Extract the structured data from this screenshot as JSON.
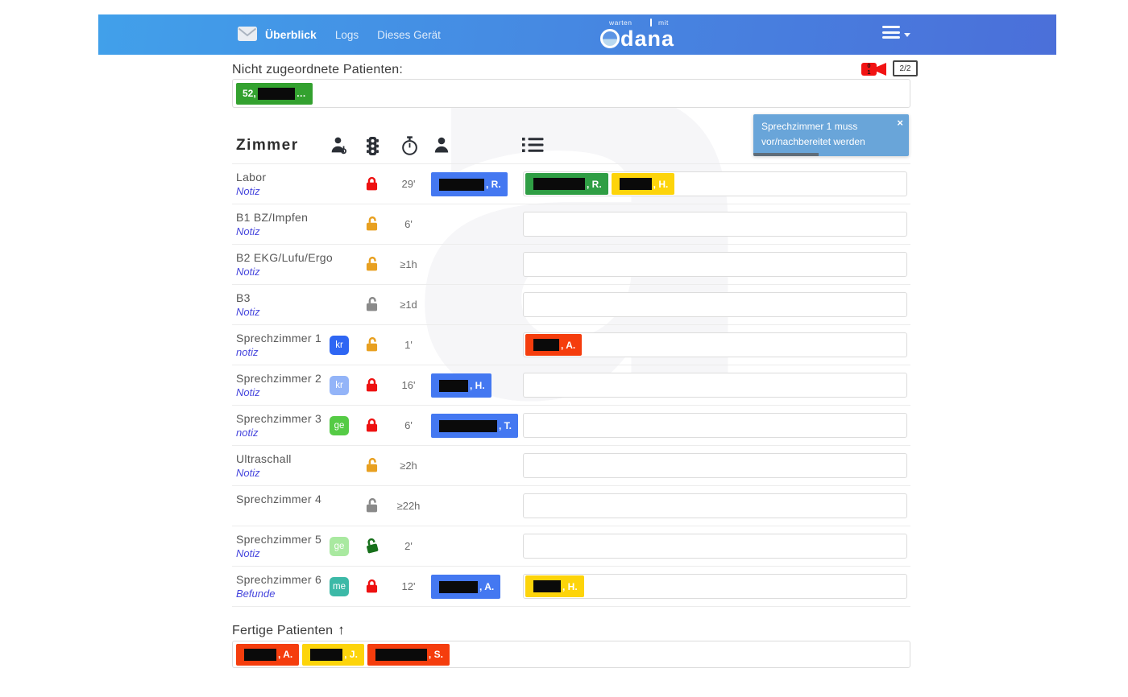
{
  "header": {
    "nav": {
      "overview": "Überblick",
      "logs": "Logs",
      "device": "Dieses Gerät"
    },
    "logo": {
      "top_left": "warten",
      "top_right": "mit",
      "main": "adana"
    }
  },
  "status_icons": {
    "camera_top": "0",
    "camera_bottom": "1",
    "monitor_label": "2/2"
  },
  "unassigned": {
    "title": "Nicht zugeordnete Patienten:",
    "patients": [
      {
        "bg": "#33a12f",
        "prefix": "52,",
        "redact": 46,
        "suffix": "…"
      }
    ]
  },
  "toast": {
    "message": "Sprechzimmer 1 muss vor/nachbereitet werden",
    "close_label": "×",
    "progress_pct": 42,
    "bg": "#69a5d9"
  },
  "table": {
    "room_header": "Zimmer",
    "header_icons": [
      "doctor-icon",
      "traffic-light-icon",
      "stopwatch-icon",
      "person-icon",
      "list-icon"
    ],
    "rows": [
      {
        "name": "Labor",
        "note": {
          "label": "Notiz"
        },
        "badge": null,
        "lock": {
          "state": "closed",
          "color": "#ee1111"
        },
        "time": "29'",
        "current": {
          "bg": "#4478f1",
          "redact": 56,
          "suffix": ", R."
        },
        "queue": [
          {
            "bg": "#2f9e44",
            "redact": 64,
            "suffix": ", R."
          },
          {
            "bg": "#fdd40a",
            "redact": 40,
            "suffix": ", H."
          }
        ]
      },
      {
        "name": "B1 BZ/Impfen",
        "note": {
          "label": "Notiz"
        },
        "badge": null,
        "lock": {
          "state": "open",
          "color": "#e8a020"
        },
        "time": "6'",
        "current": null,
        "queue": []
      },
      {
        "name": "B2 EKG/Lufu/Ergo",
        "note": {
          "label": "Notiz"
        },
        "badge": null,
        "lock": {
          "state": "open",
          "color": "#e8a020"
        },
        "time": "≥1h",
        "current": null,
        "queue": []
      },
      {
        "name": "B3",
        "note": {
          "label": "Notiz"
        },
        "badge": null,
        "lock": {
          "state": "open",
          "color": "#8a8a8a"
        },
        "time": "≥1d",
        "current": null,
        "queue": []
      },
      {
        "name": "Sprechzimmer 1",
        "note": {
          "label": "notiz"
        },
        "badge": {
          "label": "kr",
          "bg": "#2e66f3"
        },
        "lock": {
          "state": "open",
          "color": "#e8a020"
        },
        "time": "1'",
        "current": null,
        "queue": [
          {
            "bg": "#f53d0d",
            "redact": 32,
            "suffix": ", A."
          }
        ]
      },
      {
        "name": "Sprechzimmer 2",
        "note": {
          "label": "Notiz"
        },
        "badge": {
          "label": "kr",
          "bg": "#93b4f8"
        },
        "lock": {
          "state": "closed",
          "color": "#ee1111"
        },
        "time": "16'",
        "current": {
          "bg": "#4478f1",
          "redact": 36,
          "suffix": ", H."
        },
        "queue": []
      },
      {
        "name": "Sprechzimmer 3",
        "note": {
          "label": "notiz"
        },
        "badge": {
          "label": "ge",
          "bg": "#55cb45"
        },
        "lock": {
          "state": "closed",
          "color": "#ee1111"
        },
        "time": "6'",
        "current": {
          "bg": "#4478f1",
          "redact": 72,
          "suffix": ", T."
        },
        "queue": []
      },
      {
        "name": "Ultraschall",
        "note": {
          "label": "Notiz"
        },
        "badge": null,
        "lock": {
          "state": "open",
          "color": "#e8a020"
        },
        "time": "≥2h",
        "current": null,
        "queue": []
      },
      {
        "name": "Sprechzimmer 4",
        "note": null,
        "badge": null,
        "lock": {
          "state": "open",
          "color": "#8a8a8a"
        },
        "time": "≥22h",
        "current": null,
        "queue": []
      },
      {
        "name": "Sprechzimmer 5",
        "note": {
          "label": "Notiz"
        },
        "badge": {
          "label": "ge",
          "bg": "#a9e9a0"
        },
        "lock": {
          "state": "open-green",
          "color": "#17701b"
        },
        "time": "2'",
        "current": null,
        "queue": []
      },
      {
        "name": "Sprechzimmer 6",
        "note": {
          "label": "Befunde"
        },
        "badge": {
          "label": "me",
          "bg": "#3cb9a7"
        },
        "lock": {
          "state": "closed",
          "color": "#ee1111"
        },
        "time": "12'",
        "current": {
          "bg": "#4478f1",
          "redact": 48,
          "suffix": ", A."
        },
        "queue": [
          {
            "bg": "#fdd40a",
            "redact": 34,
            "suffix": ", H."
          }
        ]
      }
    ]
  },
  "finished": {
    "title": "Fertige Patienten",
    "arrow": "↑",
    "patients": [
      {
        "bg": "#f53d0d",
        "redact": 40,
        "suffix": ", A."
      },
      {
        "bg": "#fdd40a",
        "redact": 40,
        "suffix": ", J."
      },
      {
        "bg": "#f53d0d",
        "redact": 64,
        "suffix": ", S."
      }
    ]
  },
  "colors": {
    "appbar_gradient_left": "#41a0ea",
    "appbar_gradient_right": "#4b6fd9",
    "link": "#4545dd",
    "chip_blue": "#4478f1",
    "chip_green": "#2f9e44",
    "chip_yellow": "#fdd40a",
    "chip_red": "#f53d0d",
    "lock_red": "#ee1111",
    "lock_orange": "#e8a020",
    "lock_gray": "#8a8a8a",
    "lock_green": "#17701b"
  }
}
